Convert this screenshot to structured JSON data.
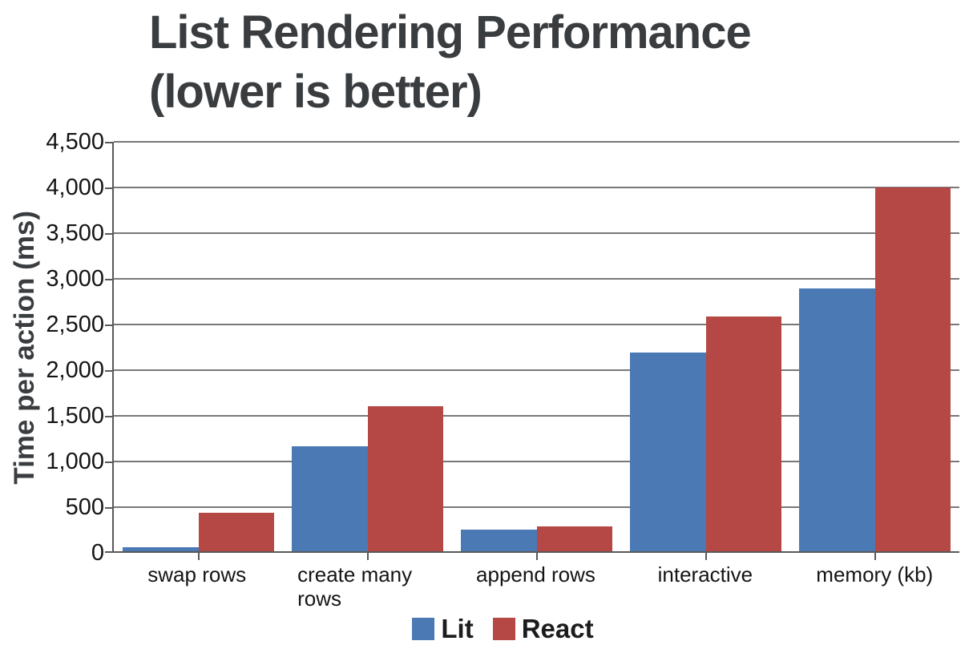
{
  "title": {
    "line1": "List Rendering Performance",
    "line2": "(lower is better)"
  },
  "chart_data": {
    "type": "bar",
    "title": "List Rendering Performance (lower is better)",
    "categories": [
      "swap rows",
      "create many rows",
      "append rows",
      "interactive",
      "memory (kb)"
    ],
    "series": [
      {
        "name": "Lit",
        "color": "#4a79b4",
        "values": [
          45,
          1150,
          240,
          2180,
          2890
        ]
      },
      {
        "name": "React",
        "color": "#b54845",
        "values": [
          420,
          1590,
          275,
          2580,
          4000
        ]
      }
    ],
    "xlabel": "",
    "ylabel": "Time per action (ms)",
    "ylim": [
      0,
      4500
    ],
    "ytick_step": 500,
    "ytick_labels": [
      "0",
      "500",
      "1,000",
      "1,500",
      "2,000",
      "2,500",
      "3,000",
      "3,500",
      "4,000",
      "4,500"
    ],
    "grid": true,
    "legend_position": "bottom"
  },
  "colors": {
    "background": "#ffffff",
    "title_text": "#3a3d40",
    "axis_line": "#595959",
    "gridline": "#787878",
    "tick_label": "#141414"
  }
}
